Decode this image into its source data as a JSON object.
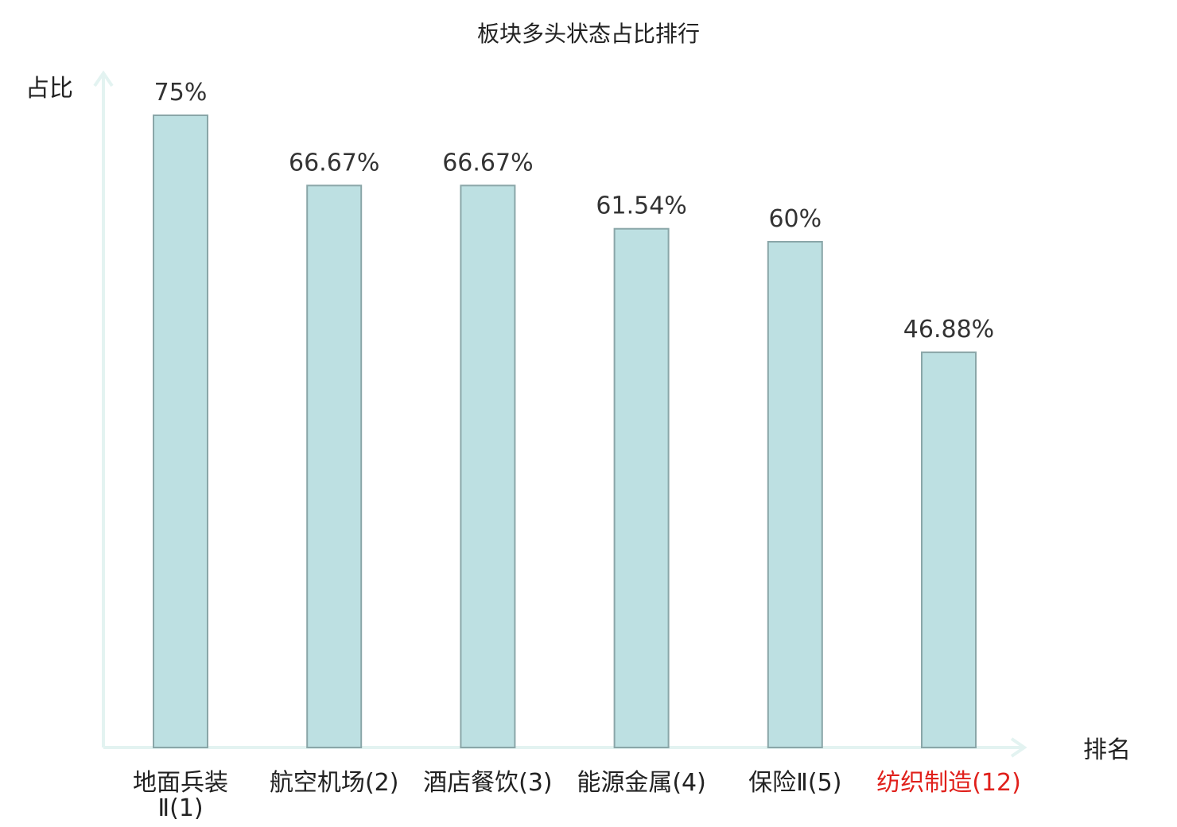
{
  "chart_data": {
    "type": "bar",
    "title": "板块多头状态占比排行",
    "ylabel": "占比",
    "xlabel": "排名",
    "ylim": [
      0,
      80
    ],
    "value_suffix": "%",
    "grid": false,
    "categories": [
      {
        "name": "地面兵装",
        "rank": "Ⅱ(1)",
        "highlight": false
      },
      {
        "name": "航空机场",
        "rank": "(2)",
        "highlight": false
      },
      {
        "name": "酒店餐饮",
        "rank": "(3)",
        "highlight": false
      },
      {
        "name": "能源金属",
        "rank": "(4)",
        "highlight": false
      },
      {
        "name": "保险Ⅱ",
        "rank": "(5)",
        "highlight": false
      },
      {
        "name": "纺织制造",
        "rank": "(12)",
        "highlight": true
      }
    ],
    "values": [
      75,
      66.67,
      66.67,
      61.54,
      60,
      46.88
    ],
    "value_labels": [
      "75%",
      "66.67%",
      "66.67%",
      "61.54%",
      "60%",
      "46.88%"
    ],
    "colors": {
      "bar_fill": "#bde0e2",
      "bar_stroke": "#8aa6a8",
      "axis": "#e3f3f1",
      "highlight_text": "#e0201b"
    }
  }
}
